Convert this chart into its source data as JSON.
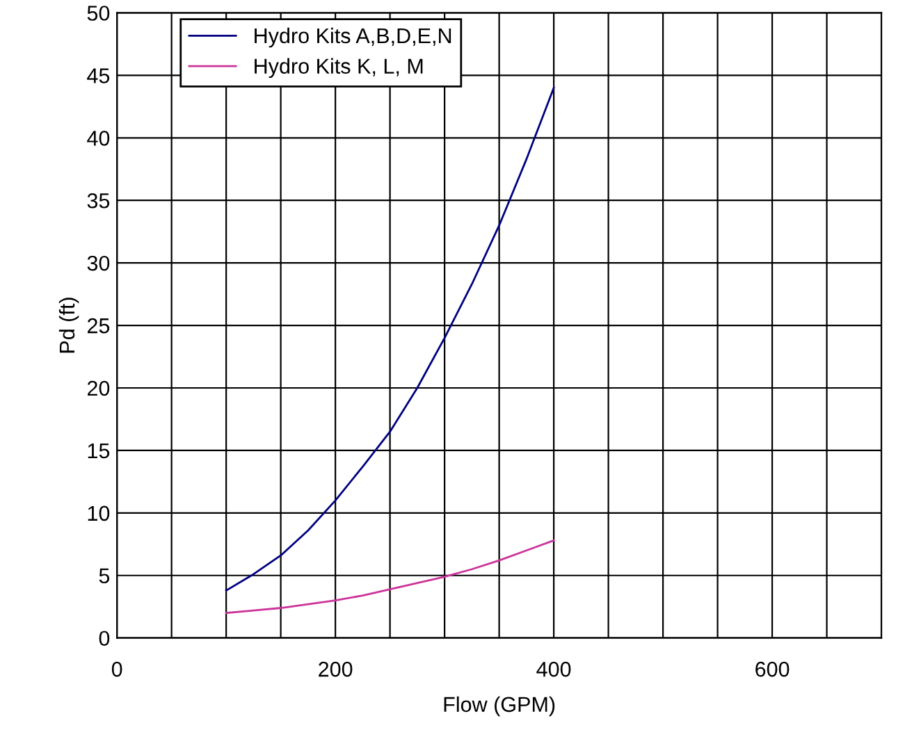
{
  "chart_data": {
    "type": "line",
    "xlabel": "Flow (GPM)",
    "ylabel": "Pd (ft)",
    "xlim": [
      0,
      700
    ],
    "ylim": [
      0,
      50
    ],
    "xticks": [
      0,
      {
        "value": 50,
        "label": null
      },
      {
        "value": 100,
        "label": null
      },
      {
        "value": 150,
        "label": null
      },
      200,
      {
        "value": 250,
        "label": null
      },
      {
        "value": 300,
        "label": null
      },
      {
        "value": 350,
        "label": null
      },
      400,
      {
        "value": 450,
        "label": null
      },
      {
        "value": 500,
        "label": null
      },
      {
        "value": 550,
        "label": null
      },
      600,
      {
        "value": 650,
        "label": null
      },
      {
        "value": 700,
        "label": null
      }
    ],
    "yticks": [
      0,
      5,
      10,
      15,
      20,
      25,
      30,
      35,
      40,
      45,
      50
    ],
    "x": [
      100,
      125,
      150,
      175,
      200,
      225,
      250,
      275,
      300,
      325,
      350,
      375,
      400
    ],
    "series": [
      {
        "name": "Hydro Kits A,B,D,E,N",
        "color": "#000080",
        "values": [
          3.8,
          5.1,
          6.6,
          8.6,
          11.0,
          13.7,
          16.5,
          20.0,
          24.0,
          28.3,
          33.0,
          38.3,
          44.0
        ]
      },
      {
        "name": "Hydro Kits K, L, M",
        "color": "#cc3399",
        "values": [
          2.0,
          2.2,
          2.4,
          2.7,
          3.0,
          3.4,
          3.9,
          4.4,
          4.9,
          5.5,
          6.2,
          7.0,
          7.8
        ]
      }
    ],
    "grid": true,
    "legend": "top left",
    "marker": "none",
    "line_style": "solid"
  }
}
